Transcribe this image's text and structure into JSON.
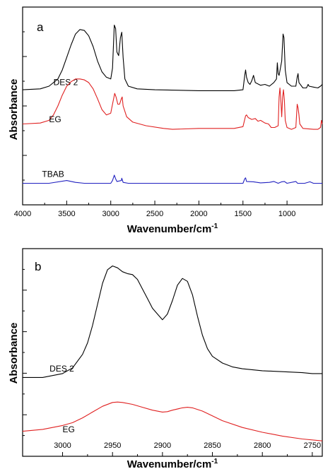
{
  "chart_data": [
    {
      "type": "line",
      "panel_label": "a",
      "xlabel": "Wavenumber/cm",
      "xlabel_sup": "-1",
      "ylabel": "Absorbance",
      "xlim": [
        4000,
        600
      ],
      "x_reversed": true,
      "xticks": [
        4000,
        3500,
        3000,
        2500,
        2000,
        1500,
        1000
      ],
      "y_ticks_labeled": false,
      "grid": false,
      "series": [
        {
          "name": "DES 2",
          "color": "#000000",
          "points": [
            [
              4000,
              0.64
            ],
            [
              3800,
              0.645
            ],
            [
              3700,
              0.66
            ],
            [
              3600,
              0.7
            ],
            [
              3550,
              0.75
            ],
            [
              3500,
              0.82
            ],
            [
              3450,
              0.89
            ],
            [
              3400,
              0.95
            ],
            [
              3350,
              0.975
            ],
            [
              3300,
              0.97
            ],
            [
              3250,
              0.94
            ],
            [
              3200,
              0.88
            ],
            [
              3150,
              0.8
            ],
            [
              3100,
              0.74
            ],
            [
              3050,
              0.71
            ],
            [
              3000,
              0.7
            ],
            [
              2980,
              0.76
            ],
            [
              2960,
              1.0
            ],
            [
              2945,
              0.98
            ],
            [
              2930,
              0.85
            ],
            [
              2910,
              0.83
            ],
            [
              2890,
              0.93
            ],
            [
              2875,
              0.96
            ],
            [
              2860,
              0.82
            ],
            [
              2840,
              0.7
            ],
            [
              2800,
              0.66
            ],
            [
              2700,
              0.645
            ],
            [
              2500,
              0.64
            ],
            [
              2000,
              0.635
            ],
            [
              1600,
              0.635
            ],
            [
              1500,
              0.64
            ],
            [
              1480,
              0.72
            ],
            [
              1470,
              0.75
            ],
            [
              1460,
              0.71
            ],
            [
              1440,
              0.68
            ],
            [
              1420,
              0.67
            ],
            [
              1400,
              0.69
            ],
            [
              1380,
              0.72
            ],
            [
              1360,
              0.68
            ],
            [
              1300,
              0.665
            ],
            [
              1250,
              0.67
            ],
            [
              1200,
              0.66
            ],
            [
              1150,
              0.68
            ],
            [
              1120,
              0.7
            ],
            [
              1110,
              0.79
            ],
            [
              1100,
              0.73
            ],
            [
              1090,
              0.72
            ],
            [
              1060,
              0.8
            ],
            [
              1045,
              0.95
            ],
            [
              1035,
              0.93
            ],
            [
              1020,
              0.75
            ],
            [
              1000,
              0.68
            ],
            [
              950,
              0.66
            ],
            [
              900,
              0.66
            ],
            [
              885,
              0.71
            ],
            [
              875,
              0.73
            ],
            [
              865,
              0.68
            ],
            [
              820,
              0.65
            ],
            [
              780,
              0.65
            ],
            [
              760,
              0.67
            ],
            [
              750,
              0.66
            ],
            [
              700,
              0.655
            ],
            [
              650,
              0.65
            ],
            [
              620,
              0.66
            ],
            [
              600,
              0.67
            ]
          ]
        },
        {
          "name": "EG",
          "color": "#e02020",
          "points": [
            [
              4000,
              0.45
            ],
            [
              3800,
              0.455
            ],
            [
              3700,
              0.47
            ],
            [
              3650,
              0.5
            ],
            [
              3600,
              0.55
            ],
            [
              3550,
              0.61
            ],
            [
              3500,
              0.66
            ],
            [
              3450,
              0.685
            ],
            [
              3400,
              0.7
            ],
            [
              3350,
              0.7
            ],
            [
              3300,
              0.695
            ],
            [
              3250,
              0.68
            ],
            [
              3200,
              0.645
            ],
            [
              3150,
              0.59
            ],
            [
              3100,
              0.53
            ],
            [
              3050,
              0.5
            ],
            [
              3000,
              0.51
            ],
            [
              2980,
              0.56
            ],
            [
              2955,
              0.62
            ],
            [
              2940,
              0.6
            ],
            [
              2920,
              0.56
            ],
            [
              2900,
              0.56
            ],
            [
              2880,
              0.59
            ],
            [
              2870,
              0.6
            ],
            [
              2860,
              0.55
            ],
            [
              2820,
              0.49
            ],
            [
              2750,
              0.46
            ],
            [
              2600,
              0.44
            ],
            [
              2400,
              0.425
            ],
            [
              2300,
              0.42
            ],
            [
              2000,
              0.425
            ],
            [
              1600,
              0.425
            ],
            [
              1500,
              0.435
            ],
            [
              1470,
              0.495
            ],
            [
              1460,
              0.5
            ],
            [
              1440,
              0.485
            ],
            [
              1420,
              0.48
            ],
            [
              1400,
              0.475
            ],
            [
              1360,
              0.48
            ],
            [
              1330,
              0.465
            ],
            [
              1300,
              0.47
            ],
            [
              1250,
              0.455
            ],
            [
              1210,
              0.45
            ],
            [
              1180,
              0.43
            ],
            [
              1140,
              0.43
            ],
            [
              1100,
              0.44
            ],
            [
              1090,
              0.6
            ],
            [
              1080,
              0.65
            ],
            [
              1070,
              0.58
            ],
            [
              1060,
              0.49
            ],
            [
              1050,
              0.6
            ],
            [
              1040,
              0.64
            ],
            [
              1030,
              0.58
            ],
            [
              1020,
              0.47
            ],
            [
              1000,
              0.43
            ],
            [
              950,
              0.42
            ],
            [
              900,
              0.43
            ],
            [
              885,
              0.56
            ],
            [
              875,
              0.54
            ],
            [
              865,
              0.5
            ],
            [
              855,
              0.45
            ],
            [
              820,
              0.425
            ],
            [
              700,
              0.42
            ],
            [
              650,
              0.42
            ],
            [
              620,
              0.43
            ],
            [
              610,
              0.47
            ],
            [
              600,
              0.45
            ]
          ]
        },
        {
          "name": "TBAB",
          "color": "#2020c0",
          "points": [
            [
              4000,
              0.12
            ],
            [
              3700,
              0.12
            ],
            [
              3500,
              0.135
            ],
            [
              3400,
              0.125
            ],
            [
              3300,
              0.12
            ],
            [
              3000,
              0.12
            ],
            [
              2980,
              0.135
            ],
            [
              2960,
              0.165
            ],
            [
              2945,
              0.145
            ],
            [
              2930,
              0.13
            ],
            [
              2880,
              0.135
            ],
            [
              2875,
              0.148
            ],
            [
              2860,
              0.125
            ],
            [
              2800,
              0.12
            ],
            [
              2000,
              0.12
            ],
            [
              1500,
              0.12
            ],
            [
              1480,
              0.145
            ],
            [
              1470,
              0.15
            ],
            [
              1460,
              0.13
            ],
            [
              1380,
              0.128
            ],
            [
              1300,
              0.122
            ],
            [
              1200,
              0.125
            ],
            [
              1150,
              0.13
            ],
            [
              1100,
              0.12
            ],
            [
              1060,
              0.128
            ],
            [
              1030,
              0.13
            ],
            [
              1000,
              0.12
            ],
            [
              900,
              0.13
            ],
            [
              880,
              0.12
            ],
            [
              800,
              0.12
            ],
            [
              740,
              0.128
            ],
            [
              700,
              0.12
            ],
            [
              600,
              0.12
            ]
          ]
        }
      ]
    },
    {
      "type": "line",
      "panel_label": "b",
      "xlabel": "Wavenumber/cm",
      "xlabel_sup": "-1",
      "ylabel": "Absorbance",
      "xlim": [
        3040,
        2740
      ],
      "x_reversed": true,
      "xticks": [
        3000,
        2950,
        2900,
        2850,
        2800,
        2750
      ],
      "y_ticks_labeled": false,
      "grid": false,
      "series": [
        {
          "name": "DES 2",
          "color": "#000000",
          "points": [
            [
              3040,
              0.41
            ],
            [
              3020,
              0.41
            ],
            [
              3000,
              0.43
            ],
            [
              2990,
              0.46
            ],
            [
              2980,
              0.53
            ],
            [
              2975,
              0.59
            ],
            [
              2970,
              0.68
            ],
            [
              2965,
              0.79
            ],
            [
              2960,
              0.9
            ],
            [
              2955,
              0.97
            ],
            [
              2950,
              0.99
            ],
            [
              2945,
              0.98
            ],
            [
              2940,
              0.96
            ],
            [
              2935,
              0.95
            ],
            [
              2930,
              0.945
            ],
            [
              2925,
              0.92
            ],
            [
              2920,
              0.87
            ],
            [
              2915,
              0.82
            ],
            [
              2910,
              0.77
            ],
            [
              2905,
              0.74
            ],
            [
              2900,
              0.71
            ],
            [
              2895,
              0.74
            ],
            [
              2890,
              0.81
            ],
            [
              2885,
              0.89
            ],
            [
              2880,
              0.925
            ],
            [
              2875,
              0.91
            ],
            [
              2870,
              0.84
            ],
            [
              2865,
              0.73
            ],
            [
              2860,
              0.63
            ],
            [
              2855,
              0.56
            ],
            [
              2850,
              0.52
            ],
            [
              2840,
              0.485
            ],
            [
              2830,
              0.465
            ],
            [
              2820,
              0.455
            ],
            [
              2800,
              0.445
            ],
            [
              2780,
              0.44
            ],
            [
              2760,
              0.435
            ],
            [
              2750,
              0.43
            ],
            [
              2740,
              0.43
            ]
          ]
        },
        {
          "name": "EG",
          "color": "#e02020",
          "points": [
            [
              3040,
              0.13
            ],
            [
              3020,
              0.14
            ],
            [
              3000,
              0.16
            ],
            [
              2990,
              0.175
            ],
            [
              2980,
              0.2
            ],
            [
              2970,
              0.23
            ],
            [
              2960,
              0.26
            ],
            [
              2950,
              0.28
            ],
            [
              2945,
              0.282
            ],
            [
              2940,
              0.28
            ],
            [
              2930,
              0.27
            ],
            [
              2920,
              0.255
            ],
            [
              2910,
              0.24
            ],
            [
              2900,
              0.23
            ],
            [
              2895,
              0.232
            ],
            [
              2890,
              0.24
            ],
            [
              2880,
              0.252
            ],
            [
              2875,
              0.255
            ],
            [
              2870,
              0.252
            ],
            [
              2860,
              0.235
            ],
            [
              2850,
              0.21
            ],
            [
              2840,
              0.185
            ],
            [
              2820,
              0.15
            ],
            [
              2800,
              0.125
            ],
            [
              2780,
              0.105
            ],
            [
              2760,
              0.09
            ],
            [
              2740,
              0.08
            ]
          ]
        }
      ]
    }
  ]
}
